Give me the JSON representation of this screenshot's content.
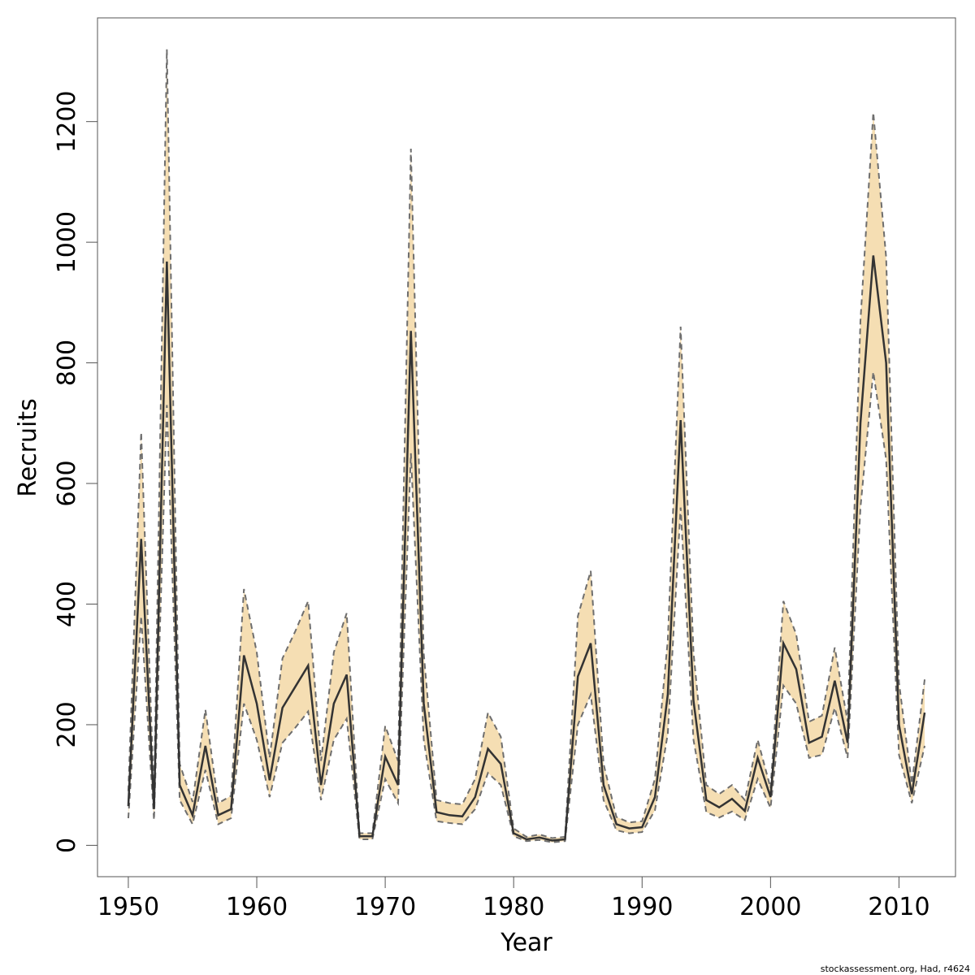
{
  "chart_data": {
    "type": "area",
    "xlabel": "Year",
    "ylabel": "Recruits",
    "xlim": [
      1947.6,
      2014.4
    ],
    "ylim": [
      -52,
      1372
    ],
    "x_ticks": [
      1950,
      1960,
      1970,
      1980,
      1990,
      2000,
      2010
    ],
    "y_ticks": [
      0,
      200,
      400,
      600,
      800,
      1000,
      1200
    ],
    "grid": false,
    "legend": "none",
    "footer": "stockassessment.org, Had, r4624",
    "colors": {
      "band": "#f5deb3",
      "line": "#333333",
      "bound": "#6e6e6e"
    },
    "x": [
      1950,
      1951,
      1952,
      1953,
      1954,
      1955,
      1956,
      1957,
      1958,
      1959,
      1960,
      1961,
      1962,
      1963,
      1964,
      1965,
      1966,
      1967,
      1968,
      1969,
      1970,
      1971,
      1972,
      1973,
      1974,
      1975,
      1976,
      1977,
      1978,
      1979,
      1980,
      1981,
      1982,
      1983,
      1984,
      1985,
      1986,
      1987,
      1988,
      1989,
      1990,
      1991,
      1992,
      1993,
      1994,
      1995,
      1996,
      1997,
      1998,
      1999,
      2000,
      2001,
      2002,
      2003,
      2004,
      2005,
      2006,
      2007,
      2008,
      2009,
      2010,
      2011,
      2012
    ],
    "series": [
      {
        "values": [
          65,
          508,
          60,
          968,
          100,
          50,
          165,
          50,
          60,
          315,
          235,
          108,
          228,
          263,
          298,
          100,
          235,
          283,
          15,
          15,
          147,
          100,
          853,
          235,
          55,
          50,
          48,
          80,
          160,
          135,
          20,
          10,
          13,
          8,
          10,
          280,
          335,
          100,
          35,
          28,
          30,
          80,
          250,
          705,
          240,
          75,
          63,
          77,
          57,
          145,
          80,
          335,
          292,
          170,
          180,
          273,
          170,
          700,
          978,
          800,
          200,
          85,
          220
        ]
      },
      {
        "values": [
          45,
          380,
          42,
          730,
          75,
          35,
          125,
          35,
          45,
          235,
          175,
          80,
          170,
          195,
          222,
          75,
          175,
          210,
          10,
          10,
          110,
          70,
          650,
          175,
          40,
          37,
          35,
          60,
          120,
          100,
          15,
          7,
          9,
          5,
          7,
          200,
          250,
          75,
          25,
          20,
          22,
          58,
          185,
          560,
          175,
          55,
          46,
          56,
          42,
          110,
          62,
          265,
          235,
          145,
          150,
          228,
          145,
          560,
          785,
          640,
          150,
          70,
          165
        ]
      },
      {
        "values": [
          90,
          685,
          80,
          1320,
          135,
          72,
          225,
          70,
          82,
          425,
          320,
          145,
          310,
          355,
          405,
          140,
          320,
          385,
          20,
          20,
          198,
          140,
          1155,
          318,
          75,
          70,
          68,
          110,
          220,
          180,
          28,
          14,
          18,
          12,
          14,
          380,
          455,
          135,
          47,
          38,
          40,
          110,
          340,
          860,
          320,
          100,
          85,
          100,
          75,
          175,
          95,
          405,
          350,
          205,
          215,
          328,
          205,
          870,
          1215,
          975,
          270,
          102,
          275
        ]
      }
    ]
  }
}
